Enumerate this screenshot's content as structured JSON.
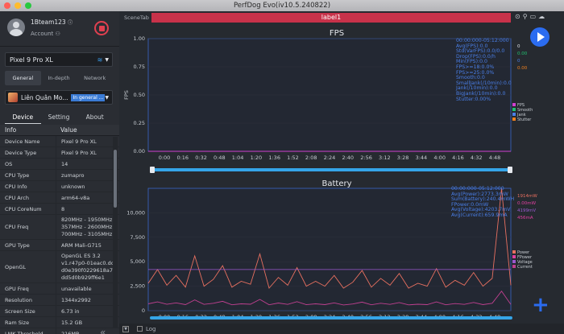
{
  "window": {
    "title": "PerfDog Evo(iv10.5.240822)"
  },
  "account": {
    "username": "1Bteam123",
    "account_label": "Account"
  },
  "device_selector": {
    "value": "Pixel 9 Pro XL"
  },
  "top_tabs": [
    "General",
    "In-depth",
    "Network"
  ],
  "app_selector": {
    "name": "Liên Quân Mo...",
    "tag": "In general ..."
  },
  "sub_tabs": [
    "Device",
    "Setting",
    "About"
  ],
  "info_table": {
    "headers": [
      "Info",
      "Value"
    ],
    "rows": [
      {
        "k": "Device Name",
        "v": "Pixel 9 Pro XL"
      },
      {
        "k": "Device Type",
        "v": "Pixel 9 Pro XL"
      },
      {
        "k": "OS",
        "v": "14"
      },
      {
        "k": "CPU Type",
        "v": "zumapro"
      },
      {
        "k": "CPU Info",
        "v": "unknown"
      },
      {
        "k": "CPU Arch",
        "v": "arm64-v8a"
      },
      {
        "k": "CPU CoreNum",
        "v": "8"
      },
      {
        "k": "CPU Freq",
        "v": "820MHz - 1950MHz\n357MHz - 2600MHz\n700MHz - 3105MHz"
      },
      {
        "k": "GPU Type",
        "v": "ARM Mali-G715"
      },
      {
        "k": "OpenGL",
        "v": "OpenGL ES 3.2\nv1.r47p0-01eac0.dc\nd0e390f0229618a7\ndd5d0b929ff6e1"
      },
      {
        "k": "GPU Freq",
        "v": "unavailable"
      },
      {
        "k": "Resolution",
        "v": "1344x2992"
      },
      {
        "k": "Screen Size",
        "v": "6.73 in"
      },
      {
        "k": "Ram Size",
        "v": "15.2 GB"
      },
      {
        "k": "LMK Threshold",
        "v": "216MB"
      }
    ]
  },
  "main": {
    "scene_tab": "SceneTab",
    "label": "label1"
  },
  "log": {
    "label": "Log"
  },
  "chart_data": [
    {
      "type": "line",
      "title": "FPS",
      "ylabel": "FPS",
      "ylim": [
        0,
        1.0
      ],
      "yticks": [
        "1.00",
        "0.75",
        "0.50",
        "0.25",
        "0.00"
      ],
      "xticks": [
        "0:00",
        "0:16",
        "0:32",
        "0:48",
        "1:04",
        "1:20",
        "1:36",
        "1:52",
        "2:08",
        "2:24",
        "2:40",
        "2:56",
        "3:12",
        "3:28",
        "3:44",
        "4:00",
        "4:16",
        "4:32",
        "4:48"
      ],
      "stats": [
        "00:00:000-05:12:000",
        "Avg(FPS):0.0",
        "Std(VarFPS):0.0/0.0",
        "Drop(FPS):0.0/h",
        "Min(FPS):0.0",
        "FPS>=18:0.0%",
        "FPS>=25:0.0%",
        "Smooth:0.0",
        "SmallJank(/10min):0.0",
        "Jank(/10min):0.0",
        "BigJank(/10min):0.0",
        "Stutter:0.00%"
      ],
      "right_values": [
        {
          "text": "0",
          "color": "#e0e3e8"
        },
        {
          "text": "0.00",
          "color": "#20c070"
        },
        {
          "text": "0",
          "color": "#4a7fe8"
        },
        {
          "text": "0.00",
          "color": "#f0801e"
        }
      ],
      "legend": [
        {
          "name": "FPS",
          "color": "#d040d0"
        },
        {
          "name": "Smooth",
          "color": "#20c070"
        },
        {
          "name": "Jank",
          "color": "#4a7fe8"
        },
        {
          "name": "Stutter",
          "color": "#f0801e"
        }
      ],
      "series": [
        {
          "name": "FPS",
          "values": [
            0,
            0,
            0,
            0,
            0,
            0,
            0,
            0,
            0,
            0,
            0,
            0,
            0,
            0,
            0,
            0,
            0,
            0,
            0,
            0
          ]
        }
      ]
    },
    {
      "type": "line",
      "title": "Battery",
      "ylim": [
        0,
        12500
      ],
      "yticks": [
        "10,000",
        "7,500",
        "5,000",
        "2,500",
        "0"
      ],
      "xticks": [
        "0:00",
        "0:16",
        "0:32",
        "0:48",
        "1:04",
        "1:20",
        "1:36",
        "1:52",
        "2:08",
        "2:24",
        "2:40",
        "2:56",
        "3:12",
        "3:28",
        "3:44",
        "4:00",
        "4:16",
        "4:32",
        "4:48"
      ],
      "stats": [
        "00:00:000-05:12:000",
        "Avg(Power):2773.3mW",
        "Sum(Battery):240.4mWH",
        "FPower:0.0mW",
        "Avg(Voltage):4203.7mV",
        "Avg(Current):659.9mA"
      ],
      "right_values": [
        {
          "text": "1914mW",
          "color": "#e87060"
        },
        {
          "text": "0.00mW",
          "color": "#e040a0"
        },
        {
          "text": "4199mV",
          "color": "#9b59d0"
        },
        {
          "text": "456mA",
          "color": "#e040a0"
        }
      ],
      "legend": [
        {
          "name": "Power",
          "color": "#e87060"
        },
        {
          "name": "FPower",
          "color": "#e040a0"
        },
        {
          "name": "Voltage",
          "color": "#9b59d0"
        },
        {
          "name": "Current",
          "color": "#c04090"
        }
      ],
      "series": [
        {
          "name": "Power",
          "x_seconds": [
            0,
            8,
            16,
            24,
            32,
            40,
            48,
            56,
            64,
            72,
            80,
            88,
            96,
            104,
            112,
            120,
            128,
            136,
            144,
            152,
            160,
            168,
            176,
            184,
            192,
            200,
            208,
            216,
            224,
            232,
            240,
            248,
            256,
            264,
            272,
            280,
            288,
            296,
            304,
            312
          ],
          "values": [
            2800,
            4200,
            2600,
            3600,
            2400,
            5600,
            2500,
            3200,
            4600,
            2400,
            3000,
            2700,
            5800,
            2300,
            3400,
            2600,
            4400,
            2500,
            3000,
            2500,
            3600,
            2300,
            2900,
            4100,
            2400,
            3300,
            2600,
            3800,
            2300,
            2800,
            2500,
            4300,
            2400,
            3100,
            2600,
            3900,
            2500,
            3300,
            13000,
            2600
          ]
        },
        {
          "name": "Current",
          "values": [
            700,
            900,
            650,
            800,
            620,
            1100,
            640,
            760,
            950,
            600,
            700,
            660,
            1150,
            600,
            780,
            640,
            920,
            620,
            700,
            620,
            800,
            580,
            680,
            870,
            600,
            760,
            640,
            830,
            590,
            660,
            620,
            900,
            600,
            720,
            640,
            840,
            620,
            760,
            2000,
            640
          ]
        },
        {
          "name": "Voltage",
          "values": [
            4200,
            4200,
            4200,
            4200,
            4200,
            4200,
            4200,
            4200,
            4200,
            4200,
            4200,
            4200,
            4200,
            4200,
            4200,
            4200,
            4200,
            4200,
            4200,
            4200,
            4200,
            4200,
            4200,
            4200,
            4200,
            4200,
            4200,
            4200,
            4200,
            4200,
            4200,
            4200,
            4200,
            4200,
            4200,
            4200,
            4200,
            4200,
            4200,
            4200
          ]
        }
      ]
    }
  ]
}
